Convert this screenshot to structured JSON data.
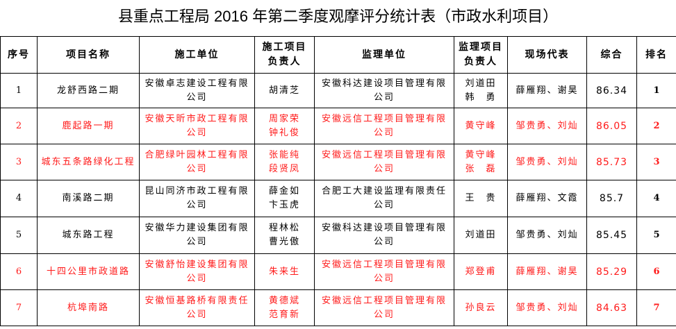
{
  "title": "县重点工程局 2016 年第二季度观摩评分统计表（市政水利项目）",
  "colors": {
    "highlight_text": "#ff1a1a",
    "normal_text": "#000000"
  },
  "headers": [
    "序号",
    "项目名称",
    "施工单位",
    "施工项目负责人",
    "监理单位",
    "监理项目负责人",
    "现场代表",
    "综合",
    "排名"
  ],
  "rows": [
    {
      "no": "1",
      "project": "龙舒西路二期",
      "contractor": "安徽卓志建设工程有限公司",
      "contractor_lead": "胡清芝",
      "supervisor": "安徽科达建设项目管理有限公司",
      "supervisor_lead": "刘道田 韩　勇",
      "site_rep": "薛雁翔、谢昊",
      "score": "86.34",
      "rank": "1",
      "highlight": false
    },
    {
      "no": "2",
      "project": "鹿起路一期",
      "contractor": "安徽天昕市政工程有限公司",
      "contractor_lead": "周家荣 钟礼俊",
      "supervisor": "安徽远信工程项目管理有限公司",
      "supervisor_lead": "黄守峰",
      "site_rep": "邹贵勇、刘灿",
      "score": "86.05",
      "rank": "2",
      "highlight": true
    },
    {
      "no": "3",
      "project": "城东五条路绿化工程",
      "contractor": "合肥绿叶园林工程有限公司",
      "contractor_lead": "张能纯 段贤凤",
      "supervisor": "安徽远信工程项目管理有限公司",
      "supervisor_lead": "黄守峰 张　磊",
      "site_rep": "邹贵勇、刘灿",
      "score": "85.73",
      "rank": "3",
      "highlight": true
    },
    {
      "no": "4",
      "project": "南溪路二期",
      "contractor": "昆山同济市政工程有限公司",
      "contractor_lead": "薛金如 卞玉虎",
      "supervisor": "合肥工大建设监理有限责任公司",
      "supervisor_lead": "王　贵",
      "site_rep": "薛雁翔、文霞",
      "score": "85.7",
      "rank": "4",
      "highlight": false
    },
    {
      "no": "5",
      "project": "城东路工程",
      "contractor": "安徽华力建设集团有限公司",
      "contractor_lead": "程林松 曹光傲",
      "supervisor": "安徽科达建设项目管理有限公司",
      "supervisor_lead": "刘道田",
      "site_rep": "邹贵勇、刘灿",
      "score": "85.45",
      "rank": "5",
      "highlight": false
    },
    {
      "no": "6",
      "project": "十四公里市政道路",
      "contractor": "安徽舒怡建设集团有限公司",
      "contractor_lead": "朱来生",
      "supervisor": "安徽远信工程项目管理有限公司",
      "supervisor_lead": "郑登甫",
      "site_rep": "薛雁翔、谢昊",
      "score": "85.29",
      "rank": "6",
      "highlight": true
    },
    {
      "no": "7",
      "project": "杭埠南路",
      "contractor": "安徽恒基路桥有限责任公司",
      "contractor_lead": "黄德斌 范育新",
      "supervisor": "安徽远信工程项目管理有限公司",
      "supervisor_lead": "孙良云",
      "site_rep": "邹贵勇、刘灿",
      "score": "84.63",
      "rank": "7",
      "highlight": true
    }
  ]
}
